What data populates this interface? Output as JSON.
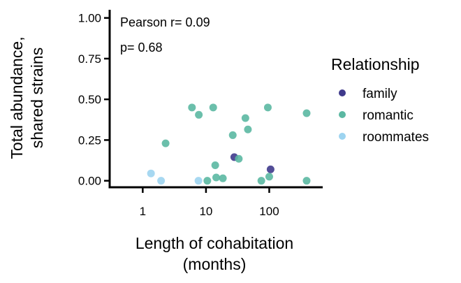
{
  "chart_data": {
    "type": "scatter",
    "xlabel": [
      "Length of cohabitation",
      "(months)"
    ],
    "ylabel": [
      "Total abundance,",
      "shared strains"
    ],
    "x_scale": "log",
    "xlim": [
      0.3,
      700
    ],
    "ylim": [
      -0.04,
      1.05
    ],
    "x_ticks": [
      1,
      10,
      100
    ],
    "x_tick_labels": [
      "1",
      "10",
      "100"
    ],
    "y_ticks": [
      0,
      0.25,
      0.5,
      0.75,
      1.0
    ],
    "y_tick_labels": [
      "0.00",
      "0.25",
      "0.50",
      "0.75",
      "1.00"
    ],
    "grid": false,
    "annotations": [
      "Pearson r= 0.09",
      "p= 0.68"
    ],
    "legend": {
      "title": "Relationship",
      "position": "right"
    },
    "series": [
      {
        "name": "family",
        "color": "#3f3a8c",
        "points": [
          {
            "x": 28,
            "y": 0.145
          },
          {
            "x": 105,
            "y": 0.07
          }
        ]
      },
      {
        "name": "romantic",
        "color": "#5bb8a2",
        "points": [
          {
            "x": 2.3,
            "y": 0.23
          },
          {
            "x": 6,
            "y": 0.45
          },
          {
            "x": 7.7,
            "y": 0.405
          },
          {
            "x": 10.5,
            "y": 0.0
          },
          {
            "x": 13,
            "y": 0.45
          },
          {
            "x": 14,
            "y": 0.095
          },
          {
            "x": 14.5,
            "y": 0.02
          },
          {
            "x": 18.5,
            "y": 0.015
          },
          {
            "x": 26.5,
            "y": 0.28
          },
          {
            "x": 33,
            "y": 0.135
          },
          {
            "x": 42,
            "y": 0.385
          },
          {
            "x": 46,
            "y": 0.315
          },
          {
            "x": 75,
            "y": 0.0
          },
          {
            "x": 95,
            "y": 0.45
          },
          {
            "x": 100,
            "y": 0.025
          },
          {
            "x": 390,
            "y": 0.415
          },
          {
            "x": 390,
            "y": 0.0
          }
        ]
      },
      {
        "name": "roommates",
        "color": "#9dd4f0",
        "points": [
          {
            "x": 1.35,
            "y": 0.045
          },
          {
            "x": 1.95,
            "y": 0.0
          },
          {
            "x": 7.6,
            "y": 0.0
          }
        ]
      }
    ]
  }
}
